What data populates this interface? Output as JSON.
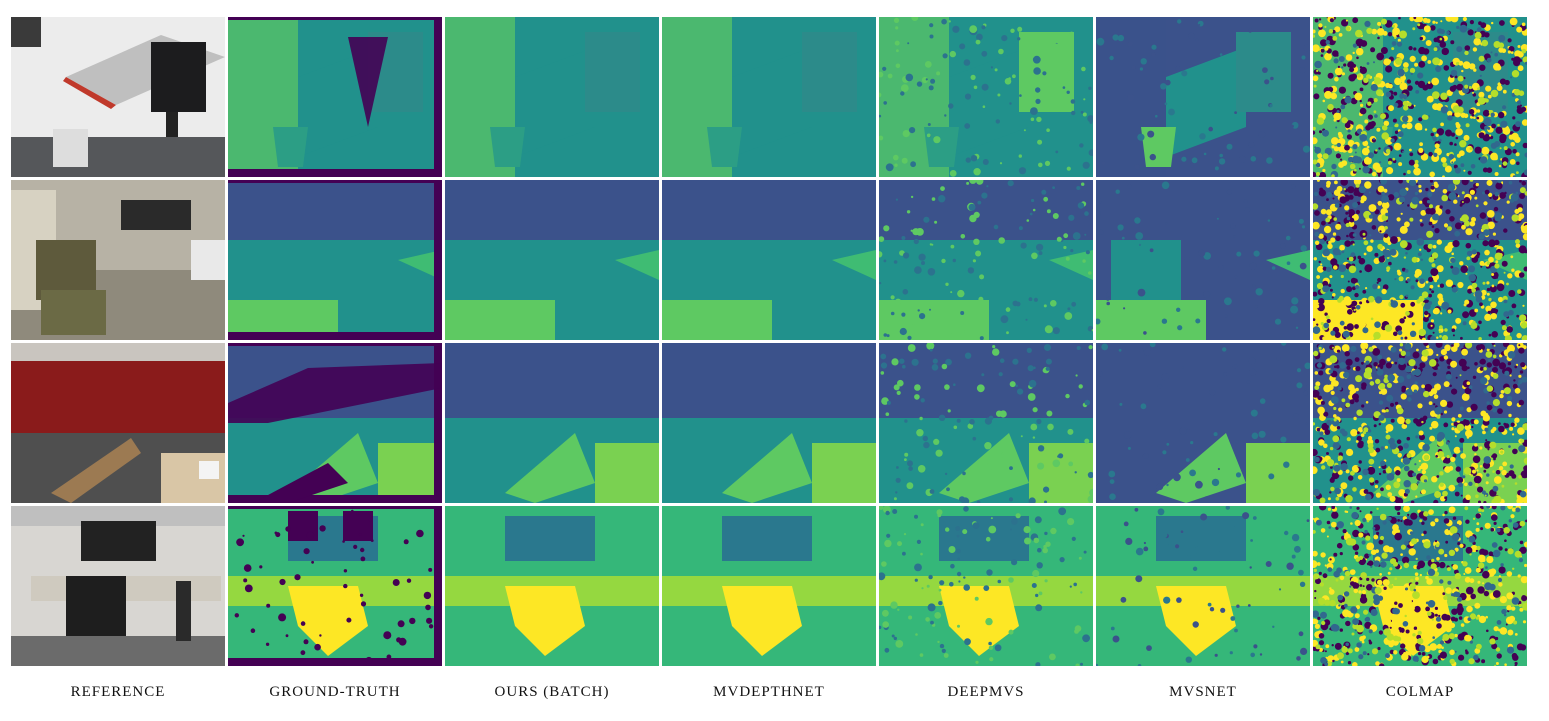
{
  "figure": {
    "columns": [
      {
        "key": "reference",
        "label": "REFERENCE"
      },
      {
        "key": "ground_truth",
        "label": "GROUND-TRUTH"
      },
      {
        "key": "ours",
        "label": "OURS (BATCH)"
      },
      {
        "key": "mvdepthnet",
        "label": "MVDEPTHNET"
      },
      {
        "key": "deepmvs",
        "label": "DEEPMVS"
      },
      {
        "key": "mvsnet",
        "label": "MVSNET"
      },
      {
        "key": "colmap",
        "label": "COLMAP"
      }
    ],
    "rows": [
      {
        "scene": "office desk with chair and trash bin"
      },
      {
        "scene": "lounge with foosball table and armchair"
      },
      {
        "scene": "red kitchen counter with chair and mug"
      },
      {
        "scene": "office desk with dual monitors and chair"
      }
    ],
    "colormap": "viridis",
    "colors": {
      "dark": "#440154",
      "deep_blue": "#3b528b",
      "teal": "#21918c",
      "green": "#5ec962",
      "yellow": "#fde725"
    }
  }
}
